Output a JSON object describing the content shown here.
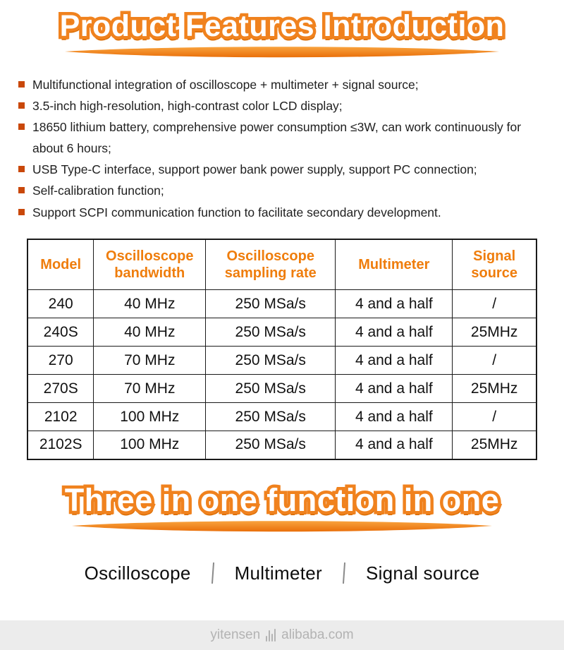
{
  "colors": {
    "accent": "#f0821e",
    "accent_dark": "#d96b00"
  },
  "banner1": {
    "title": "Product Features Introduction"
  },
  "features": [
    "Multifunctional integration of oscilloscope + multimeter + signal source;",
    "3.5-inch high-resolution, high-contrast color LCD display;",
    "18650 lithium battery, comprehensive power consumption ≤3W, can work continuously for about 6 hours;",
    "USB Type-C interface, support power bank power supply, support PC connection;",
    "Self-calibration function;",
    "Support SCPI communication function to facilitate secondary development."
  ],
  "spec_table": {
    "headers": [
      "Model",
      "Oscilloscope bandwidth",
      "Oscilloscope sampling rate",
      "Multimeter",
      "Signal source"
    ],
    "rows": [
      [
        "240",
        "40 MHz",
        "250 MSa/s",
        "4 and a half",
        "/"
      ],
      [
        "240S",
        "40 MHz",
        "250 MSa/s",
        "4 and a half",
        "25MHz"
      ],
      [
        "270",
        "70 MHz",
        "250 MSa/s",
        "4 and a half",
        "/"
      ],
      [
        "270S",
        "70 MHz",
        "250 MSa/s",
        "4 and a half",
        "25MHz"
      ],
      [
        "2102",
        "100 MHz",
        "250 MSa/s",
        "4 and a half",
        "/"
      ],
      [
        "2102S",
        "100 MHz",
        "250 MSa/s",
        "4 and a half",
        "25MHz"
      ]
    ]
  },
  "banner2": {
    "title": "Three in one function in one"
  },
  "functions": [
    "Oscilloscope",
    "Multimeter",
    "Signal source"
  ],
  "footer": {
    "brand": "yitensen",
    "site": "alibaba.com"
  }
}
